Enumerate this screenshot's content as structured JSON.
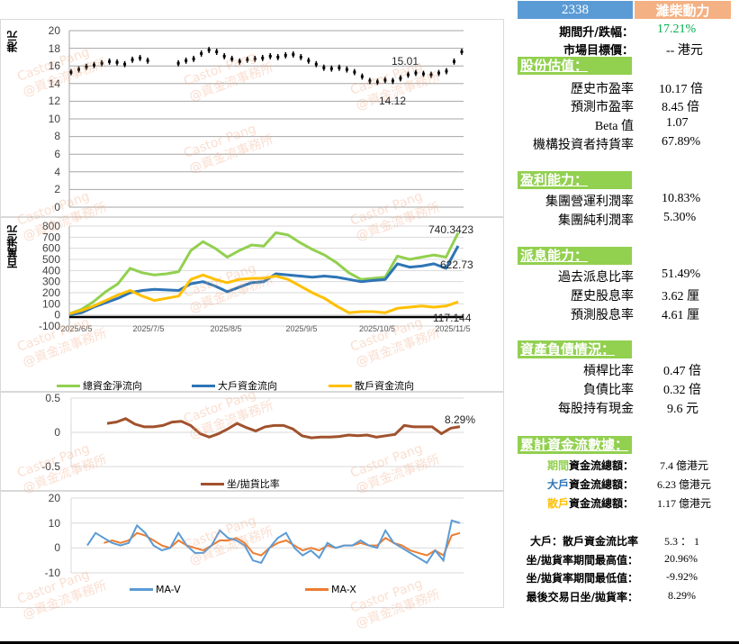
{
  "header": {
    "code": "2338",
    "name": "濰柴動力",
    "code_bg": "#5b9bd5",
    "name_bg": "#f4b183"
  },
  "summary": {
    "change_label": "期間升/跌幅：",
    "change_value": "17.21%",
    "change_color": "#00b050",
    "target_label": "市場目標價：",
    "target_value": "-- 港元"
  },
  "valuation": {
    "title": "股份估值：",
    "rows": [
      {
        "label": "歷史市盈率",
        "value": "10.17 倍"
      },
      {
        "label": "預測市盈率",
        "value": "8.45 倍"
      },
      {
        "label": "Beta 值",
        "value": "1.07"
      },
      {
        "label": "機構投資者持貨率",
        "value": "67.89%"
      }
    ]
  },
  "profitability": {
    "title": "盈利能力：",
    "rows": [
      {
        "label": "集團營運利潤率",
        "value": "10.83%"
      },
      {
        "label": "集團純利潤率",
        "value": "5.30%"
      }
    ]
  },
  "dividend": {
    "title": "派息能力：",
    "rows": [
      {
        "label": "過去派息比率",
        "value": "51.49%"
      },
      {
        "label": "歷史股息率",
        "value": "3.62 厘"
      },
      {
        "label": "預測股息率",
        "value": "4.61 厘"
      }
    ]
  },
  "balance": {
    "title": "資產負債情況：",
    "rows": [
      {
        "label": "槓桿比率",
        "value": "0.47 倍"
      },
      {
        "label": "負債比率",
        "value": "0.32 倍"
      },
      {
        "label": "每股持有現金",
        "value": "9.6 元"
      }
    ]
  },
  "cashflow": {
    "title": "累計資金流數據：",
    "rows": [
      {
        "prefix": "期間",
        "prefix_color": "#92d050",
        "label": "資金流總額：",
        "value": "7.4 億港元"
      },
      {
        "prefix": "大戶",
        "prefix_color": "#2e75b6",
        "label": "資金流總額：",
        "value": "6.23 億港元"
      },
      {
        "prefix": "散戶",
        "prefix_color": "#ffc000",
        "label": "資金流總額：",
        "value": "1.17 億港元"
      }
    ]
  },
  "stats": {
    "rows": [
      {
        "label": "大戶：散戶資金流比率",
        "value": "5.3 ： 1"
      },
      {
        "label": "坐/拋貨率期間最高值：",
        "value": "20.96%"
      },
      {
        "label": "坐/拋貨率期間最低值：",
        "value": "-9.92%"
      },
      {
        "label": "最後交易日坐/拋貨率：",
        "value": "8.29%"
      }
    ]
  },
  "watermark": {
    "line1": "Castor Pang",
    "line2": "@資金流事務所"
  },
  "chart_data": [
    {
      "type": "candlestick",
      "title": "",
      "ylabel": "港元",
      "ylim": [
        0,
        20
      ],
      "yticks": [
        0,
        2,
        4,
        6,
        8,
        10,
        12,
        14,
        16,
        18,
        20
      ],
      "annotations": [
        "15.01",
        "14.12"
      ],
      "approx_close": [
        15.3,
        15.6,
        15.9,
        16.1,
        16.3,
        16.5,
        16.4,
        16.2,
        16.7,
        16.9,
        16.6,
        16.0,
        15.9,
        16.0,
        16.3,
        16.6,
        16.8,
        17.4,
        17.8,
        17.6,
        17.1,
        16.8,
        16.5,
        16.7,
        16.8,
        16.9,
        17.1,
        17.0,
        17.2,
        17.3,
        17.0,
        16.6,
        16.2,
        15.8,
        15.7,
        15.8,
        15.6,
        15.3,
        14.8,
        14.3,
        14.2,
        14.4,
        14.3,
        14.6,
        15.0,
        15.2,
        15.1,
        15.0,
        15.2,
        15.4,
        16.5,
        17.6
      ]
    },
    {
      "type": "line",
      "ylabel": "百萬港元",
      "ylim": [
        -100,
        800
      ],
      "yticks": [
        -100,
        0,
        100,
        200,
        300,
        400,
        500,
        600,
        700,
        800
      ],
      "categories": [
        "2025/6/5",
        "2025/7/5",
        "2025/8/5",
        "2025/9/5",
        "2025/10/5",
        "2025/11/5"
      ],
      "series": [
        {
          "name": "總資金淨流向",
          "color": "#92d050",
          "values": [
            10,
            50,
            120,
            210,
            280,
            420,
            380,
            360,
            370,
            390,
            580,
            660,
            600,
            520,
            580,
            630,
            620,
            740,
            720,
            650,
            590,
            540,
            470,
            380,
            320,
            330,
            340,
            530,
            500,
            520,
            540,
            520,
            740
          ],
          "last_label": "740.3423"
        },
        {
          "name": "大戶資金流向",
          "color": "#2e75b6",
          "values": [
            0,
            20,
            70,
            110,
            150,
            200,
            220,
            230,
            225,
            220,
            280,
            300,
            260,
            210,
            250,
            290,
            300,
            370,
            360,
            350,
            340,
            350,
            340,
            320,
            300,
            310,
            320,
            460,
            430,
            440,
            460,
            420,
            622
          ],
          "last_label": "622.73"
        },
        {
          "name": "散戶資金流向",
          "color": "#ffc000",
          "values": [
            10,
            40,
            80,
            130,
            180,
            220,
            170,
            130,
            150,
            170,
            320,
            360,
            320,
            290,
            320,
            330,
            330,
            350,
            320,
            260,
            200,
            150,
            80,
            20,
            30,
            30,
            20,
            60,
            70,
            80,
            70,
            80,
            117
          ],
          "last_label": "117.144"
        }
      ]
    },
    {
      "type": "line",
      "ylim": [
        -0.5,
        0.5
      ],
      "yticks": [
        -0.5,
        0,
        0.5
      ],
      "series": [
        {
          "name": "坐/拋貨比率",
          "color": "#a0522d",
          "values": [
            0.13,
            0.15,
            0.2,
            0.12,
            0.08,
            0.08,
            0.1,
            0.15,
            0.16,
            0.1,
            -0.02,
            -0.07,
            -0.02,
            0.05,
            0.13,
            0.07,
            0.02,
            0.08,
            0.1,
            0.1,
            0.05,
            -0.05,
            -0.08,
            -0.07,
            -0.07,
            -0.06,
            -0.04,
            -0.05,
            -0.04,
            -0.07,
            -0.05,
            -0.03,
            0.1,
            0.08,
            0.08,
            0.08,
            -0.02,
            0.06,
            0.0829
          ],
          "last_label": "8.29%"
        }
      ]
    },
    {
      "type": "line",
      "ylim": [
        -10,
        20
      ],
      "yticks": [
        -10,
        0,
        10,
        20
      ],
      "series": [
        {
          "name": "MA-V",
          "color": "#5b9bd5",
          "values": [
            1,
            6,
            4,
            2,
            1,
            2,
            9,
            6,
            1,
            -1,
            0,
            6,
            1,
            -2,
            -2,
            1,
            7,
            4,
            3,
            1,
            -5,
            -6,
            0,
            4,
            6,
            0,
            -3,
            -1,
            -4,
            2,
            0,
            1,
            1,
            3,
            1,
            0,
            7,
            2,
            0,
            -2,
            -4,
            -6,
            -1,
            -5,
            11,
            10
          ]
        },
        {
          "name": "MA-X",
          "color": "#ed7d31",
          "values": [
            null,
            null,
            2,
            3,
            2,
            3,
            6,
            5,
            3,
            1,
            0,
            3,
            1,
            0,
            -1,
            1,
            3,
            3,
            4,
            2,
            -2,
            -3,
            0,
            2,
            3,
            1,
            -1,
            0,
            -1,
            1,
            0,
            1,
            1,
            2,
            1,
            1,
            4,
            2,
            1,
            -1,
            -2,
            -3,
            -1,
            -3,
            5,
            6
          ]
        }
      ]
    }
  ]
}
